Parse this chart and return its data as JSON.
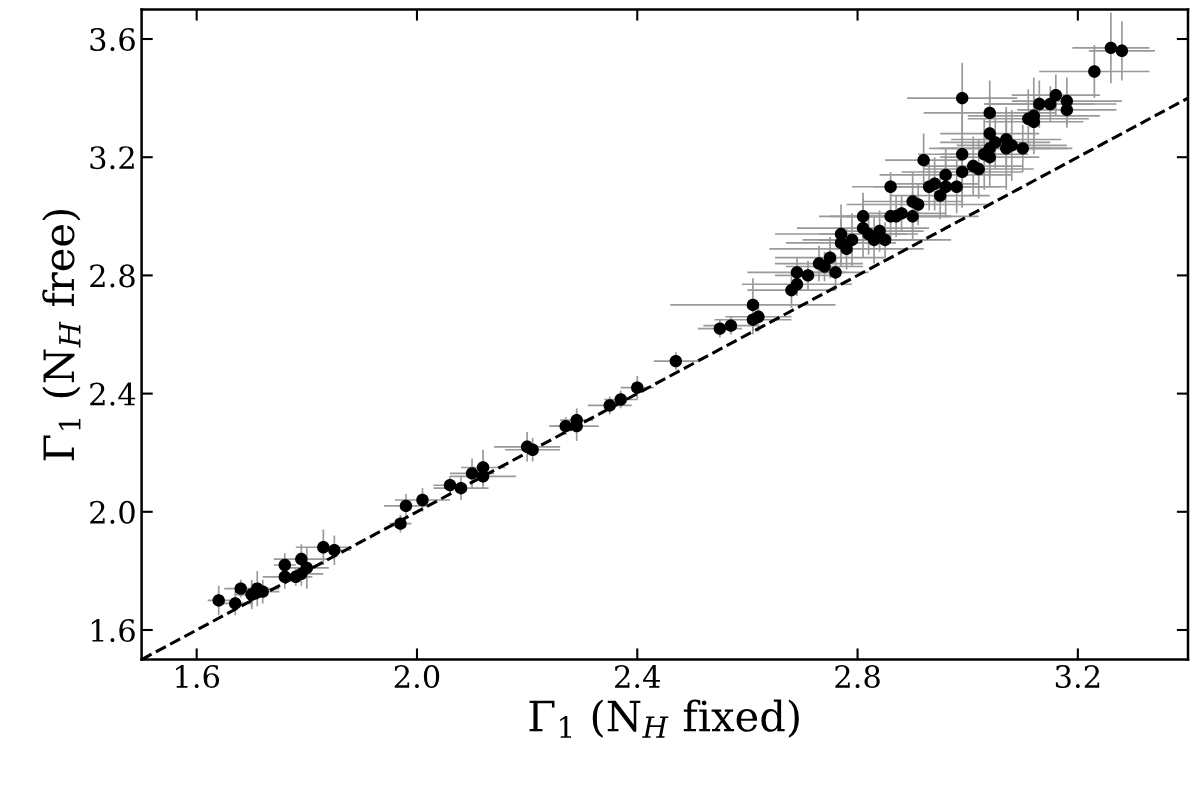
{
  "chart_data": {
    "type": "scatter",
    "xlabel": "Γ$_{1}$ (N$_{H}$ fixed)",
    "ylabel": "Γ$_{1}$ (N$_{H}$ free)",
    "xlim": [
      1.5,
      3.4
    ],
    "ylim": [
      1.5,
      3.7
    ],
    "xticks": [
      1.6,
      {
        "value": 2.0,
        "label": "2.0"
      },
      2.4,
      2.8,
      3.2
    ],
    "yticks": [
      1.6,
      {
        "value": 2.0,
        "label": "2.0"
      },
      2.4,
      2.8,
      3.2,
      3.6
    ],
    "grid": false,
    "legend": false,
    "marker": "circle",
    "series": [
      {
        "color": "#000000",
        "x": [
          1.64,
          1.67,
          1.68,
          1.7,
          1.7,
          1.71,
          1.72,
          1.76,
          1.76,
          1.78,
          1.79,
          1.79,
          1.8,
          1.83,
          1.85,
          1.97,
          1.98,
          2.01,
          2.06,
          2.08,
          2.1,
          2.12,
          2.12,
          2.2,
          2.21,
          2.27,
          2.29,
          2.29,
          2.35,
          2.37,
          2.4,
          2.47,
          2.55,
          2.57,
          2.61,
          2.61,
          2.62,
          2.68,
          2.69,
          2.69,
          2.71,
          2.73,
          2.74,
          2.76,
          2.75,
          2.77,
          2.77,
          2.78,
          2.79,
          2.81,
          2.81,
          2.82,
          2.83,
          2.84,
          2.85,
          2.86,
          2.86,
          2.87,
          2.88,
          2.9,
          2.9,
          2.91,
          2.92,
          2.93,
          2.94,
          2.95,
          2.96,
          2.96,
          2.98,
          2.99,
          2.99,
          3.01,
          3.02,
          3.03,
          2.99,
          3.04,
          3.04,
          3.04,
          3.05,
          3.04,
          3.07,
          3.07,
          3.08,
          3.1,
          3.11,
          3.12,
          3.12,
          3.13,
          3.15,
          3.16,
          3.18,
          3.18,
          3.23,
          3.26,
          3.28
        ],
        "values": [
          1.7,
          1.69,
          1.74,
          1.72,
          1.72,
          1.74,
          1.73,
          1.82,
          1.78,
          1.78,
          1.79,
          1.84,
          1.81,
          1.88,
          1.87,
          1.96,
          2.02,
          2.04,
          2.09,
          2.08,
          2.13,
          2.12,
          2.15,
          2.22,
          2.21,
          2.29,
          2.31,
          2.29,
          2.36,
          2.38,
          2.42,
          2.51,
          2.62,
          2.63,
          2.7,
          2.65,
          2.66,
          2.75,
          2.77,
          2.81,
          2.8,
          2.84,
          2.83,
          2.81,
          2.86,
          2.94,
          2.91,
          2.89,
          2.92,
          3.0,
          2.96,
          2.94,
          2.92,
          2.95,
          2.92,
          3.1,
          3.0,
          3.0,
          3.01,
          3.0,
          3.05,
          3.04,
          3.19,
          3.1,
          3.11,
          3.07,
          3.14,
          3.1,
          3.1,
          3.21,
          3.15,
          3.17,
          3.16,
          3.21,
          3.4,
          3.35,
          3.28,
          3.23,
          3.25,
          3.2,
          3.23,
          3.26,
          3.24,
          3.23,
          3.33,
          3.34,
          3.32,
          3.38,
          3.38,
          3.41,
          3.39,
          3.36,
          3.49,
          3.57,
          3.56
        ],
        "xerrors": [
          0.02,
          0.03,
          0.03,
          0.03,
          0.02,
          0.04,
          0.03,
          0.02,
          0.04,
          0.03,
          0.04,
          0.05,
          0.04,
          0.05,
          0.03,
          0.02,
          0.04,
          0.05,
          0.03,
          0.05,
          0.04,
          0.06,
          0.04,
          0.06,
          0.05,
          0.03,
          0.03,
          0.04,
          0.04,
          0.03,
          0.03,
          0.04,
          0.04,
          0.05,
          0.15,
          0.07,
          0.06,
          0.08,
          0.1,
          0.09,
          0.06,
          0.08,
          0.07,
          0.06,
          0.1,
          0.12,
          0.1,
          0.14,
          0.09,
          0.08,
          0.12,
          0.09,
          0.1,
          0.08,
          0.12,
          0.07,
          0.11,
          0.1,
          0.08,
          0.12,
          0.09,
          0.13,
          0.07,
          0.1,
          0.08,
          0.09,
          0.12,
          0.1,
          0.09,
          0.08,
          0.11,
          0.09,
          0.1,
          0.08,
          0.1,
          0.12,
          0.09,
          0.11,
          0.1,
          0.09,
          0.12,
          0.1,
          0.1,
          0.08,
          0.11,
          0.12,
          0.09,
          0.1,
          0.12,
          0.08,
          0.1,
          0.09,
          0.1,
          0.07,
          0.06
        ],
        "errors": [
          0.05,
          0.04,
          0.03,
          0.04,
          0.05,
          0.06,
          0.04,
          0.04,
          0.04,
          0.03,
          0.04,
          0.05,
          0.07,
          0.06,
          0.05,
          0.03,
          0.04,
          0.04,
          0.03,
          0.04,
          0.05,
          0.04,
          0.06,
          0.05,
          0.04,
          0.03,
          0.04,
          0.05,
          0.03,
          0.03,
          0.04,
          0.03,
          0.03,
          0.03,
          0.09,
          0.05,
          0.05,
          0.06,
          0.04,
          0.05,
          0.05,
          0.06,
          0.05,
          0.06,
          0.07,
          0.1,
          0.08,
          0.07,
          0.09,
          0.08,
          0.1,
          0.07,
          0.08,
          0.07,
          0.06,
          0.05,
          0.08,
          0.07,
          0.06,
          0.08,
          0.1,
          0.07,
          0.09,
          0.08,
          0.09,
          0.08,
          0.09,
          0.1,
          0.09,
          0.18,
          0.12,
          0.1,
          0.1,
          0.12,
          0.12,
          0.11,
          0.13,
          0.1,
          0.09,
          0.1,
          0.14,
          0.1,
          0.12,
          0.08,
          0.1,
          0.13,
          0.09,
          0.08,
          0.06,
          0.07,
          0.08,
          0.06,
          0.09,
          0.12,
          0.1
        ]
      },
      {
        "type": "line",
        "color": "#000000",
        "line_style": "dashed",
        "marker": "none",
        "x": [
          1.5,
          3.4
        ],
        "values": [
          1.5,
          3.4
        ]
      }
    ]
  }
}
